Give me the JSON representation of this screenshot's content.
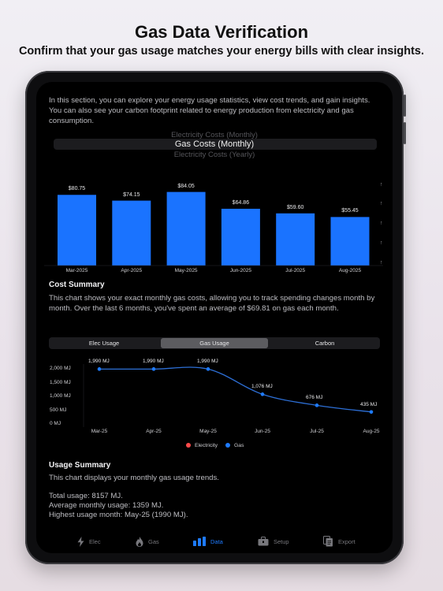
{
  "headline": {
    "title": "Gas Data Verification",
    "subtitle": "Confirm that your gas usage matches your energy bills with clear insights."
  },
  "intro": "In this section, you can explore your energy usage statistics, view cost trends, and gain insights. You can also see your carbon footprint related to energy production from electricity and gas consumption.",
  "picker": {
    "options": [
      "Electricity Costs (Monthly)",
      "Gas Costs (Monthly)",
      "Electricity Costs (Yearly)"
    ],
    "selected": "Gas Costs (Monthly)"
  },
  "cost_chart": {
    "type": "bar",
    "categories": [
      "Mar-2025",
      "Apr-2025",
      "May-2025",
      "Jun-2025",
      "Jul-2025",
      "Aug-2025"
    ],
    "values": [
      80.75,
      74.15,
      84.05,
      64.86,
      59.6,
      55.45
    ],
    "value_labels": [
      "$80.75",
      "$74.15",
      "$84.05",
      "$64.86",
      "$59.60",
      "$55.45"
    ],
    "ylim": [
      0,
      90
    ],
    "color": "#1a73ff"
  },
  "cost_summary": {
    "title": "Cost Summary",
    "text": "This chart shows your exact monthly gas costs, allowing you to track spending changes month by month. Over the last 6 months, you've spent an average of $69.81 on gas each month."
  },
  "usage_tabs": {
    "items": [
      "Elec Usage",
      "Gas Usage",
      "Carbon"
    ],
    "active": "Gas Usage"
  },
  "usage_chart": {
    "type": "line",
    "x": [
      "Mar-25",
      "Apr-25",
      "May-25",
      "Jun-25",
      "Jul-25",
      "Aug-25"
    ],
    "values": [
      1990,
      1990,
      1990,
      1076,
      676,
      435
    ],
    "point_labels": [
      "1,990 MJ",
      "1,990 MJ",
      "1,990 MJ",
      "1,076 MJ",
      "676 MJ",
      "435 MJ"
    ],
    "yticks": [
      "2,000 MJ",
      "1,500 MJ",
      "1,000 MJ",
      "500 MJ",
      "0 MJ"
    ],
    "ylim": [
      0,
      2200
    ],
    "legend": [
      {
        "name": "Electricity",
        "color": "#ff4a4a"
      },
      {
        "name": "Gas",
        "color": "#1e7bff"
      }
    ],
    "line_color": "#2d6fd6"
  },
  "usage_summary": {
    "title": "Usage Summary",
    "line1": "This chart displays your monthly gas usage trends.",
    "total": "Total usage: 8157 MJ.",
    "average": "Average monthly usage: 1359 MJ.",
    "highest": "Highest usage month: May-25 (1990 MJ)."
  },
  "tabbar": {
    "items": [
      {
        "label": "Elec",
        "icon": "bolt-icon"
      },
      {
        "label": "Gas",
        "icon": "flame-icon"
      },
      {
        "label": "Data",
        "icon": "bar-chart-icon"
      },
      {
        "label": "Setup",
        "icon": "toolbox-icon"
      },
      {
        "label": "Export",
        "icon": "documents-icon"
      }
    ],
    "active": "Data",
    "active_color": "#1e7bff"
  }
}
